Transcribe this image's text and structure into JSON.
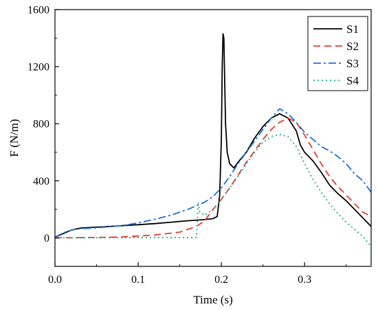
{
  "chart_data": {
    "type": "line",
    "title": "",
    "xlabel": "Time (s)",
    "ylabel": "F (N/m)",
    "xlim": [
      0.0,
      0.38
    ],
    "ylim": [
      -200,
      1600
    ],
    "x_ticks": [
      0.0,
      0.1,
      0.2,
      0.3
    ],
    "x_tick_labels": [
      "0.0",
      "0.1",
      "0.2",
      "0.3"
    ],
    "y_ticks": [
      0,
      400,
      800,
      1200,
      1600
    ],
    "y_tick_labels": [
      "0",
      "400",
      "800",
      "1200",
      "1600"
    ],
    "grid": false,
    "legend_position": "top-right",
    "series": [
      {
        "name": "S1",
        "color": "#000000",
        "dash": "solid",
        "points": [
          [
            0.0,
            5
          ],
          [
            0.01,
            30
          ],
          [
            0.02,
            55
          ],
          [
            0.03,
            68
          ],
          [
            0.04,
            72
          ],
          [
            0.06,
            78
          ],
          [
            0.08,
            85
          ],
          [
            0.1,
            92
          ],
          [
            0.12,
            100
          ],
          [
            0.14,
            110
          ],
          [
            0.16,
            120
          ],
          [
            0.18,
            128
          ],
          [
            0.19,
            135
          ],
          [
            0.195,
            150
          ],
          [
            0.198,
            300
          ],
          [
            0.2,
            700
          ],
          [
            0.201,
            1200
          ],
          [
            0.202,
            1430
          ],
          [
            0.203,
            1400
          ],
          [
            0.204,
            1100
          ],
          [
            0.205,
            800
          ],
          [
            0.207,
            600
          ],
          [
            0.21,
            520
          ],
          [
            0.215,
            490
          ],
          [
            0.22,
            530
          ],
          [
            0.23,
            600
          ],
          [
            0.24,
            700
          ],
          [
            0.25,
            780
          ],
          [
            0.26,
            840
          ],
          [
            0.27,
            870
          ],
          [
            0.28,
            840
          ],
          [
            0.29,
            750
          ],
          [
            0.295,
            650
          ],
          [
            0.3,
            600
          ],
          [
            0.31,
            540
          ],
          [
            0.32,
            460
          ],
          [
            0.33,
            370
          ],
          [
            0.34,
            310
          ],
          [
            0.35,
            260
          ],
          [
            0.36,
            200
          ],
          [
            0.37,
            140
          ],
          [
            0.38,
            80
          ]
        ]
      },
      {
        "name": "S2",
        "color": "#e8392b",
        "dash": "10,6",
        "points": [
          [
            0.0,
            0
          ],
          [
            0.04,
            2
          ],
          [
            0.08,
            6
          ],
          [
            0.12,
            20
          ],
          [
            0.15,
            40
          ],
          [
            0.17,
            80
          ],
          [
            0.18,
            120
          ],
          [
            0.19,
            200
          ],
          [
            0.2,
            270
          ],
          [
            0.21,
            350
          ],
          [
            0.22,
            440
          ],
          [
            0.23,
            530
          ],
          [
            0.24,
            610
          ],
          [
            0.25,
            690
          ],
          [
            0.26,
            760
          ],
          [
            0.27,
            810
          ],
          [
            0.28,
            840
          ],
          [
            0.29,
            810
          ],
          [
            0.3,
            720
          ],
          [
            0.31,
            620
          ],
          [
            0.32,
            520
          ],
          [
            0.33,
            430
          ],
          [
            0.34,
            360
          ],
          [
            0.35,
            300
          ],
          [
            0.36,
            240
          ],
          [
            0.37,
            180
          ],
          [
            0.38,
            150
          ]
        ]
      },
      {
        "name": "S3",
        "color": "#1a6fd6",
        "dash": "11,4,3,4",
        "points": [
          [
            0.0,
            5
          ],
          [
            0.01,
            35
          ],
          [
            0.02,
            55
          ],
          [
            0.03,
            64
          ],
          [
            0.05,
            70
          ],
          [
            0.08,
            85
          ],
          [
            0.1,
            105
          ],
          [
            0.12,
            130
          ],
          [
            0.14,
            160
          ],
          [
            0.16,
            200
          ],
          [
            0.18,
            250
          ],
          [
            0.19,
            290
          ],
          [
            0.2,
            350
          ],
          [
            0.21,
            430
          ],
          [
            0.22,
            520
          ],
          [
            0.23,
            600
          ],
          [
            0.24,
            680
          ],
          [
            0.25,
            760
          ],
          [
            0.26,
            840
          ],
          [
            0.27,
            905
          ],
          [
            0.28,
            870
          ],
          [
            0.29,
            810
          ],
          [
            0.3,
            740
          ],
          [
            0.31,
            690
          ],
          [
            0.32,
            640
          ],
          [
            0.33,
            610
          ],
          [
            0.34,
            570
          ],
          [
            0.35,
            520
          ],
          [
            0.36,
            450
          ],
          [
            0.37,
            400
          ],
          [
            0.38,
            320
          ]
        ]
      },
      {
        "name": "S4",
        "color": "#1aab8a",
        "dash": "2,4",
        "points": [
          [
            0.0,
            0
          ],
          [
            0.05,
            1
          ],
          [
            0.1,
            2
          ],
          [
            0.15,
            2
          ],
          [
            0.17,
            3
          ],
          [
            0.171,
            100
          ],
          [
            0.172,
            250
          ],
          [
            0.174,
            180
          ],
          [
            0.18,
            160
          ],
          [
            0.19,
            200
          ],
          [
            0.2,
            270
          ],
          [
            0.21,
            350
          ],
          [
            0.22,
            430
          ],
          [
            0.23,
            520
          ],
          [
            0.24,
            600
          ],
          [
            0.25,
            670
          ],
          [
            0.26,
            710
          ],
          [
            0.27,
            725
          ],
          [
            0.28,
            710
          ],
          [
            0.29,
            640
          ],
          [
            0.3,
            520
          ],
          [
            0.31,
            410
          ],
          [
            0.32,
            320
          ],
          [
            0.33,
            240
          ],
          [
            0.34,
            170
          ],
          [
            0.35,
            110
          ],
          [
            0.36,
            60
          ],
          [
            0.37,
            10
          ],
          [
            0.38,
            -60
          ]
        ]
      }
    ]
  }
}
